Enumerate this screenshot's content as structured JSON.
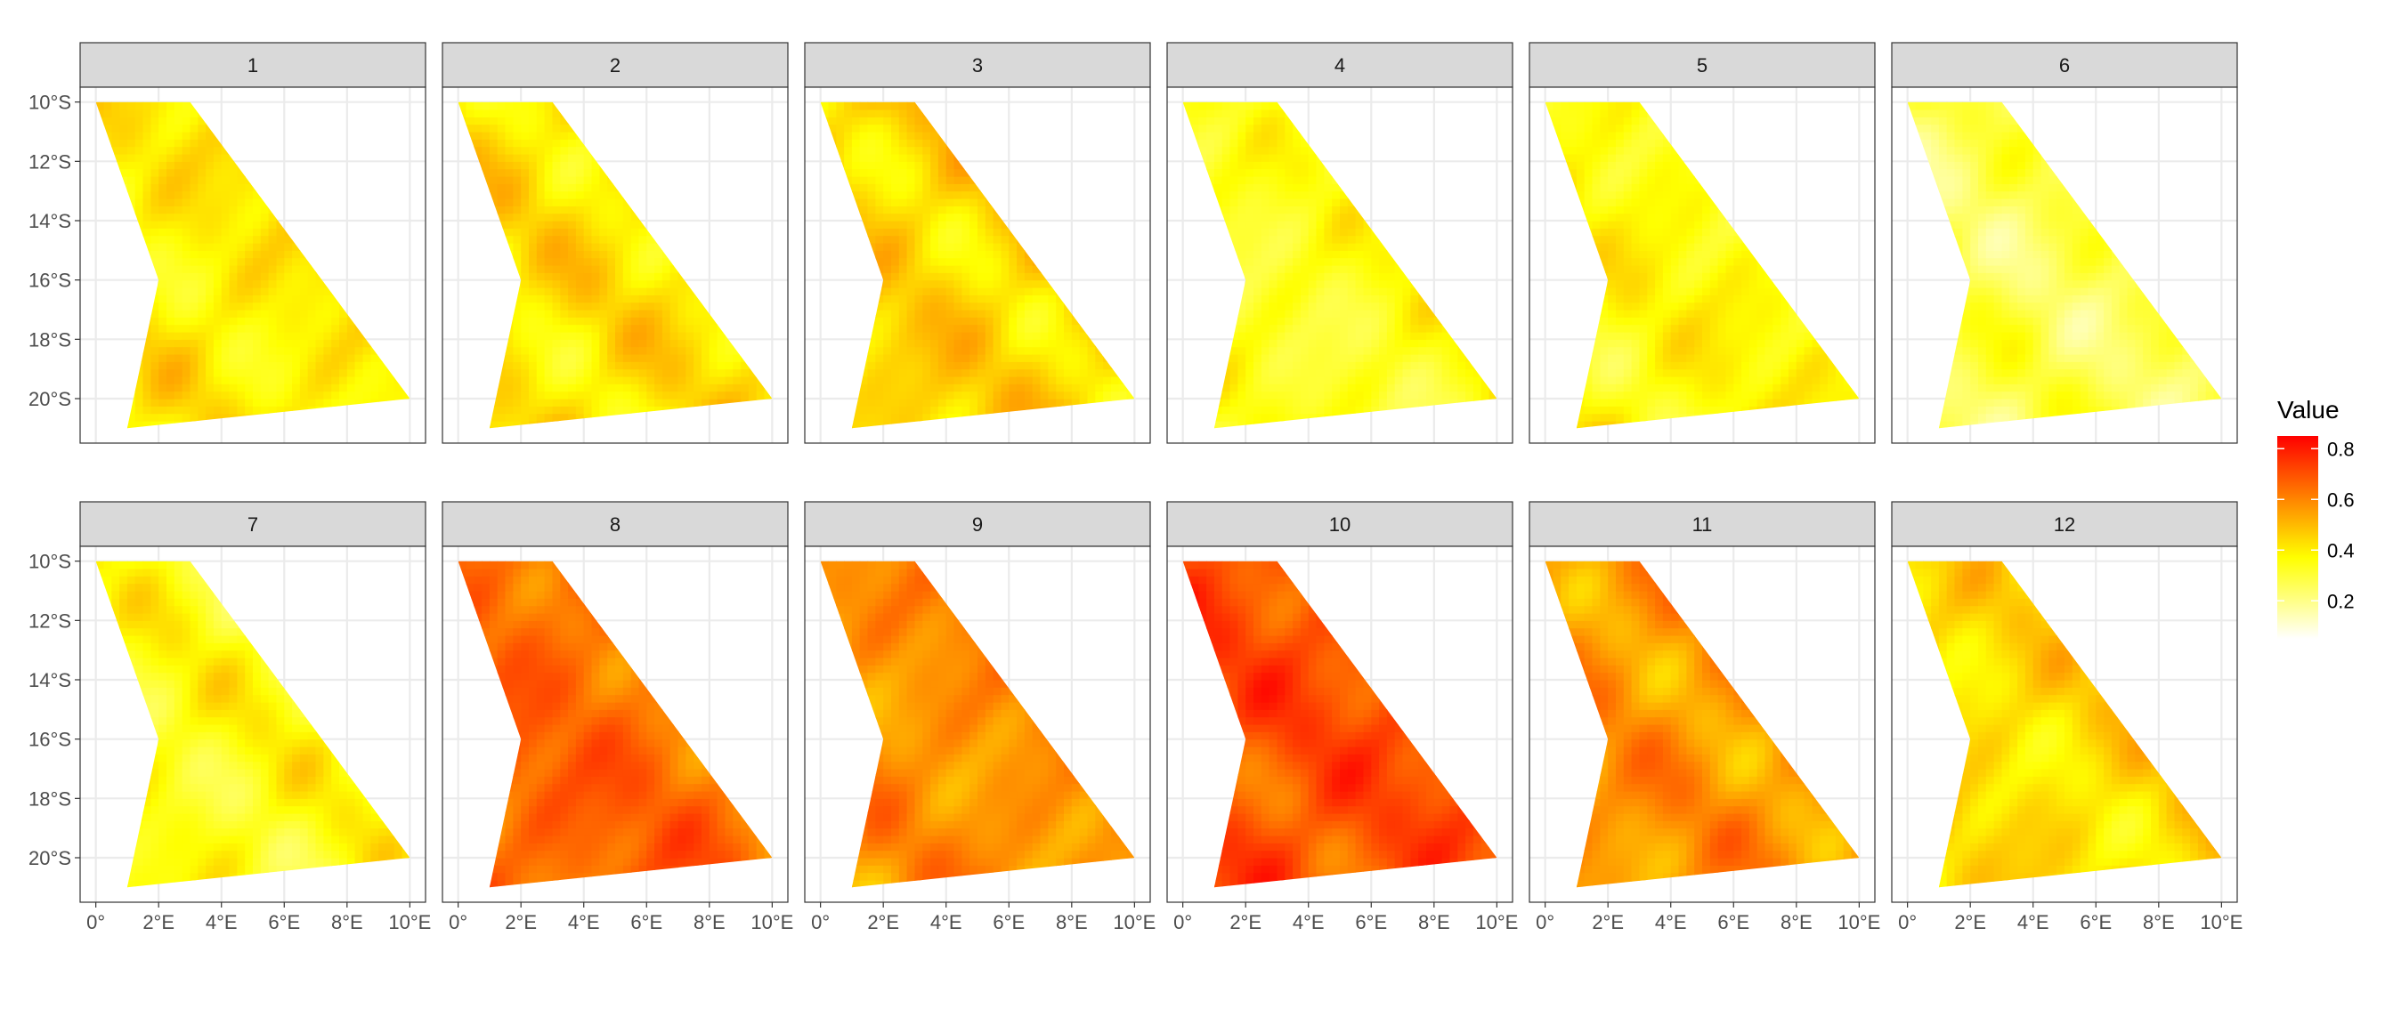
{
  "chart_data": {
    "type": "heatmap",
    "title": "",
    "xlabel": "",
    "ylabel": "",
    "facet_labels": [
      "1",
      "2",
      "3",
      "4",
      "5",
      "6",
      "7",
      "8",
      "9",
      "10",
      "11",
      "12"
    ],
    "facet_grid": {
      "rows": 2,
      "cols": 6
    },
    "xlim": [
      -0.5,
      10.5
    ],
    "ylim": [
      -21.5,
      -9.5
    ],
    "x_ticks": [
      0,
      2,
      4,
      6,
      8,
      10
    ],
    "x_tick_labels": [
      "0°",
      "2°E",
      "4°E",
      "6°E",
      "8°E",
      "10°E"
    ],
    "y_ticks": [
      -10,
      -12,
      -14,
      -16,
      -18,
      -20
    ],
    "y_tick_labels": [
      "10°S",
      "12°S",
      "14°S",
      "16°S",
      "18°S",
      "20°S"
    ],
    "region_polygon": [
      [
        0,
        -10
      ],
      [
        3,
        -10
      ],
      [
        10,
        -20
      ],
      [
        1,
        -21
      ],
      [
        2,
        -16
      ]
    ],
    "grid": true,
    "legend": {
      "title": "Value",
      "position": "right",
      "ticks": [
        0.8,
        0.6,
        0.4,
        0.2
      ],
      "tick_labels": [
        "0.8",
        "0.6",
        "0.4",
        "0.2"
      ],
      "range": [
        0.05,
        0.85
      ]
    },
    "colors": {
      "low": "#ffffff",
      "mid": "#ffff00",
      "high": "#ff0000"
    },
    "facet_mean_values": [
      0.4,
      0.42,
      0.45,
      0.33,
      0.37,
      0.27,
      0.35,
      0.66,
      0.58,
      0.7,
      0.57,
      0.43
    ],
    "panel_background": "#ffffff",
    "strip_background": "#d9d9d9",
    "grid_color": "#ebebeb"
  }
}
